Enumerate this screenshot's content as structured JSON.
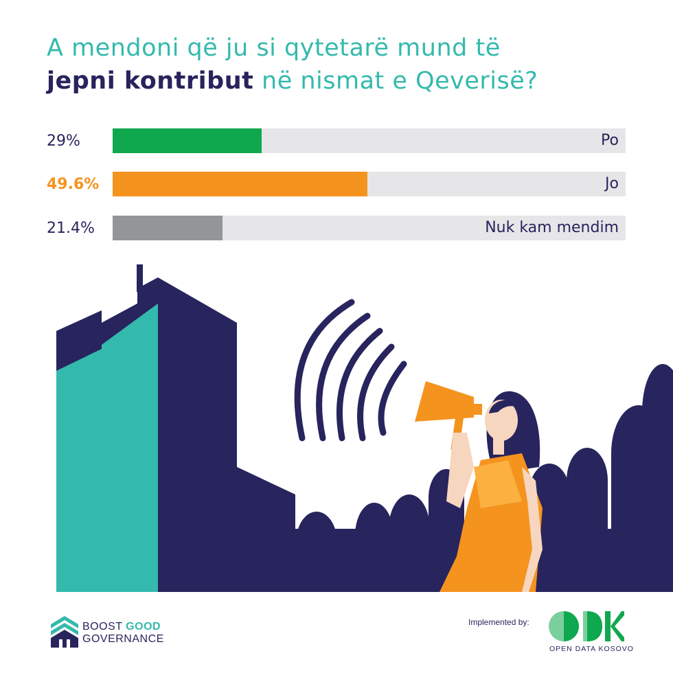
{
  "title": {
    "line1": "A mendoni që ju si qytetarë mund të",
    "line2_bold": "jepni kontribut",
    "line2_rest": " në nismat e Qeverisë?"
  },
  "chart_data": {
    "type": "bar",
    "orientation": "horizontal",
    "categories": [
      "Po",
      "Jo",
      "Nuk kam mendim"
    ],
    "values": [
      29,
      49.6,
      21.4
    ],
    "value_labels": [
      "29%",
      "49.6%",
      "21.4%"
    ],
    "colors": [
      "#0fa84e",
      "#f5931f",
      "#939598"
    ],
    "highlight_index": 1,
    "xlim": [
      0,
      100
    ],
    "grid": false
  },
  "footer": {
    "brand_boost": "BOOST",
    "brand_good": "GOOD",
    "brand_governance": "GOVERNANCE",
    "implemented_by": "Implemented by:",
    "odk_subtitle": "OPEN DATA KOSOVO"
  },
  "colors": {
    "navy": "#28245d",
    "teal": "#34b9ad",
    "orange": "#f5931f",
    "track": "#e6e6e8"
  },
  "icons": [
    "building-illustration",
    "megaphone-icon",
    "sound-waves",
    "woman-figure",
    "crowd-silhouette",
    "boost-good-governance-logo",
    "odk-logo"
  ]
}
